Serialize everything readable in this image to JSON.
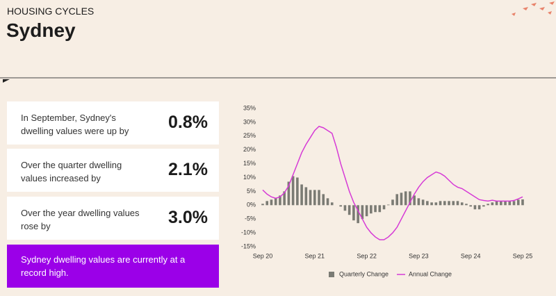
{
  "header": {
    "kicker": "HOUSING CYCLES",
    "title": "Sydney"
  },
  "cards": [
    {
      "text": "In September, Sydney's dwelling values were up by",
      "value": "0.8%"
    },
    {
      "text": "Over the quarter dwelling values increased by",
      "value": "2.1%"
    },
    {
      "text": "Over the year dwelling values rose by",
      "value": "3.0%"
    }
  ],
  "callout": "Sydney dwelling values are currently at a record high.",
  "chart_data": {
    "type": "bar-line",
    "categories": [
      "Sep 20",
      null,
      null,
      null,
      null,
      null,
      null,
      null,
      null,
      null,
      null,
      null,
      "Sep 21",
      null,
      null,
      null,
      null,
      null,
      null,
      null,
      null,
      null,
      null,
      null,
      "Sep 22",
      null,
      null,
      null,
      null,
      null,
      null,
      null,
      null,
      null,
      null,
      null,
      "Sep 23",
      null,
      null,
      null,
      null,
      null,
      null,
      null,
      null,
      null,
      null,
      null,
      "Sep 24",
      null,
      null,
      null,
      null,
      null,
      null,
      null,
      null,
      null,
      null,
      null,
      "Sep 25"
    ],
    "series": [
      {
        "name": "Quarterly Change",
        "type": "bar",
        "color": "#7b7b74",
        "values": [
          0.5,
          1.5,
          2,
          2.5,
          3.5,
          5,
          8.5,
          10.5,
          10,
          7.5,
          6.5,
          5.5,
          5.5,
          5.5,
          4,
          2.5,
          1,
          0,
          -0.5,
          -2,
          -3.5,
          -5.5,
          -6.5,
          -5,
          -4,
          -3,
          -2.5,
          -2.5,
          -1.5,
          0.2,
          2,
          4,
          4.5,
          5,
          5,
          3.5,
          2.5,
          2,
          1.5,
          1,
          1,
          1.5,
          1.5,
          1.5,
          1.5,
          1.5,
          1,
          0.5,
          -0.5,
          -1.5,
          -1.5,
          -0.5,
          0.5,
          1,
          1.5,
          1.5,
          1.5,
          1.5,
          1.5,
          2,
          2.1
        ]
      },
      {
        "name": "Annual Change",
        "type": "line",
        "color": "#d63ad6",
        "values": [
          5.5,
          4,
          3,
          2.5,
          3,
          4.5,
          7,
          11,
          15,
          19,
          22,
          24.5,
          27,
          28.5,
          28,
          27,
          26,
          21,
          15,
          10,
          5,
          1,
          -2,
          -5,
          -8,
          -10,
          -11.5,
          -12.5,
          -12.5,
          -11.5,
          -10,
          -8,
          -5,
          -2,
          1,
          4,
          6.5,
          8.5,
          10,
          11,
          12,
          11.5,
          10.5,
          9,
          7.5,
          6.5,
          6,
          5,
          4,
          3,
          2,
          1.7,
          1.5,
          1.8,
          1.5,
          1.5,
          1.5,
          1.5,
          1.7,
          2.3,
          3.0
        ]
      }
    ],
    "ylim": [
      -15,
      35
    ],
    "yticks": [
      {
        "value": -15,
        "label": "-15%"
      },
      {
        "value": -10,
        "label": "-10%"
      },
      {
        "value": -5,
        "label": "-5%"
      },
      {
        "value": 0,
        "label": "0%"
      },
      {
        "value": 5,
        "label": "5%"
      },
      {
        "value": 10,
        "label": "10%"
      },
      {
        "value": 15,
        "label": "15%"
      },
      {
        "value": 20,
        "label": "20%"
      },
      {
        "value": 25,
        "label": "25%"
      },
      {
        "value": 30,
        "label": "30%"
      },
      {
        "value": 35,
        "label": "35%"
      }
    ],
    "legend": "bottom"
  }
}
